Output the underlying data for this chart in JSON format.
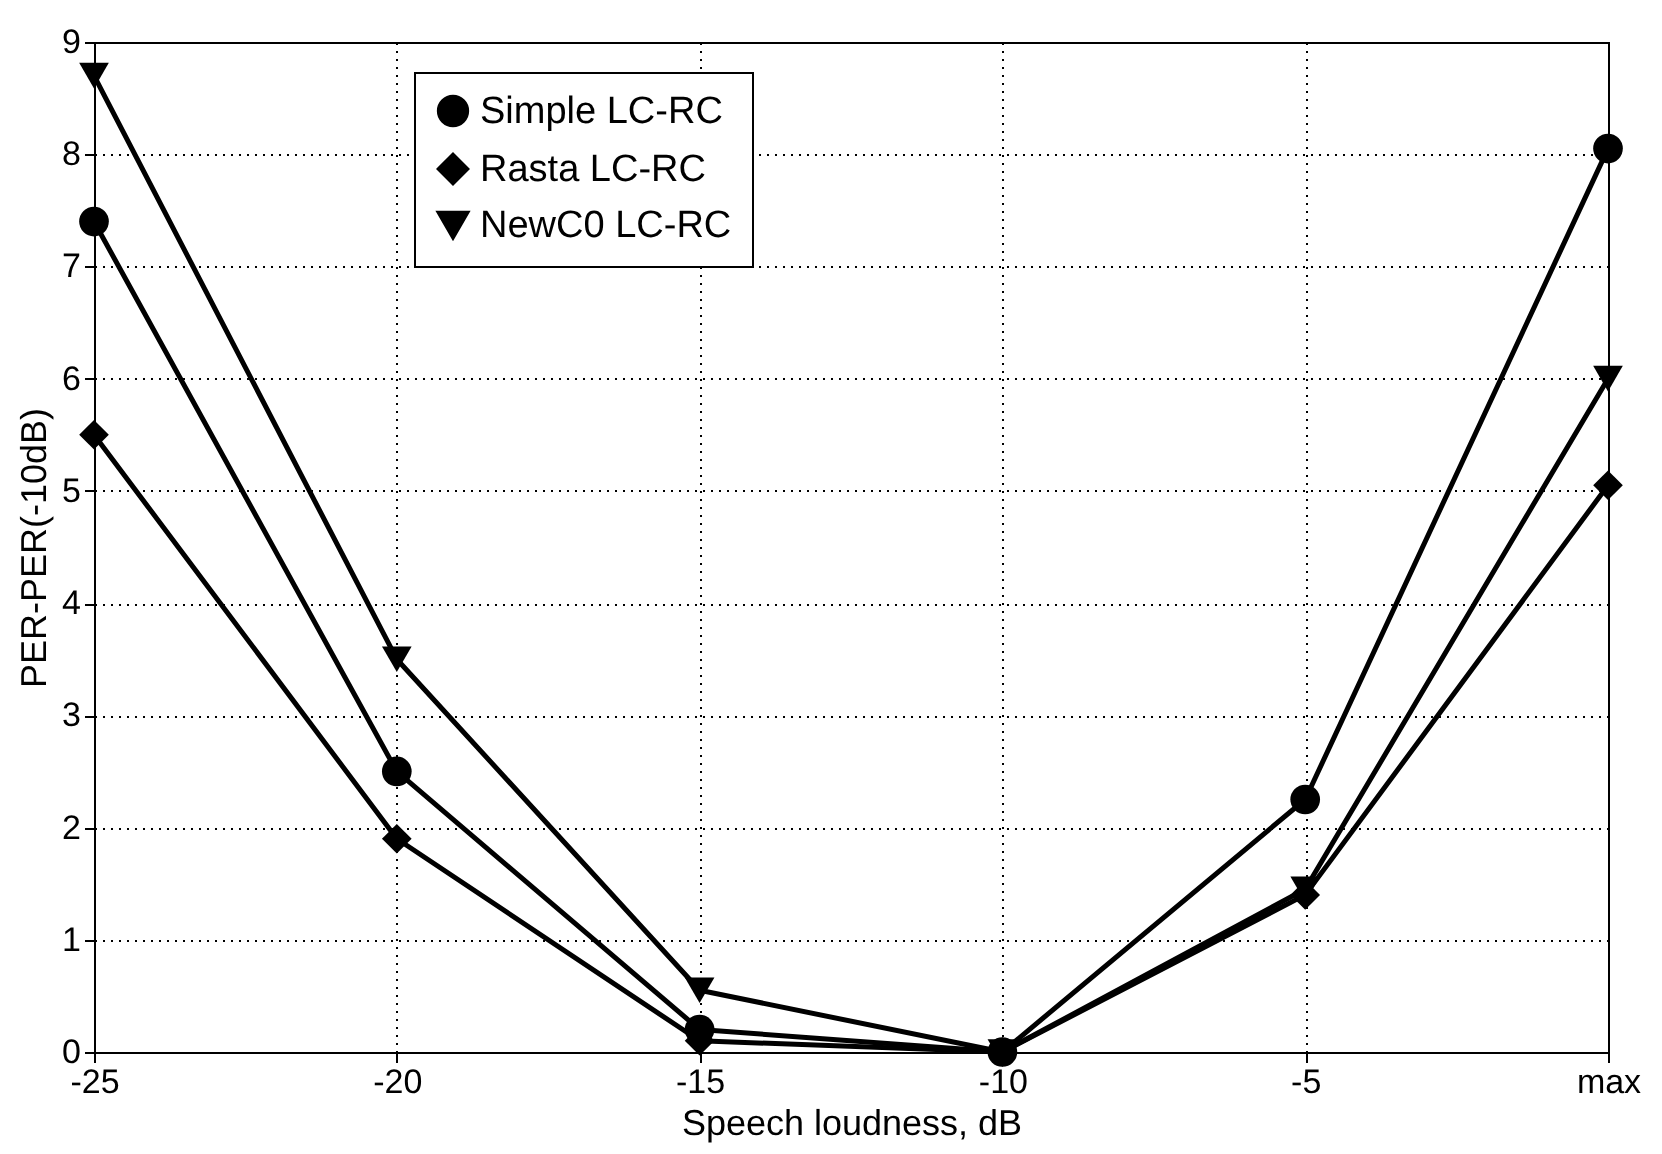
{
  "chart_data": {
    "type": "line",
    "xlabel": "Speech loudness, dB",
    "ylabel": "PER-PER(-10dB)",
    "x": [
      -25,
      -20,
      -15,
      -10,
      -5,
      0
    ],
    "series": [
      {
        "name": "Simple LC-RC",
        "color": "#000000",
        "marker": "circle",
        "values": [
          7.4,
          2.5,
          0.2,
          0,
          2.25,
          8.05
        ]
      },
      {
        "name": "Rasta LC-RC",
        "color": "#000000",
        "marker": "diamond",
        "values": [
          5.5,
          1.9,
          0.1,
          0,
          1.4,
          5.05
        ]
      },
      {
        "name": "NewC0 LC-RC",
        "color": "#000000",
        "marker": "triangle",
        "values": [
          8.7,
          3.5,
          0.55,
          0,
          1.45,
          6.0
        ]
      }
    ],
    "xlim": [
      -25,
      0
    ],
    "xticks": [
      -25,
      -20,
      -15,
      -10,
      -5,
      {
        "value": 0,
        "label": "max"
      }
    ],
    "ylim": [
      0,
      9
    ],
    "yticks": [
      0,
      1,
      2,
      3,
      4,
      5,
      6,
      7,
      8,
      9
    ],
    "grid": true,
    "legend": "top",
    "line_style": "solid"
  }
}
